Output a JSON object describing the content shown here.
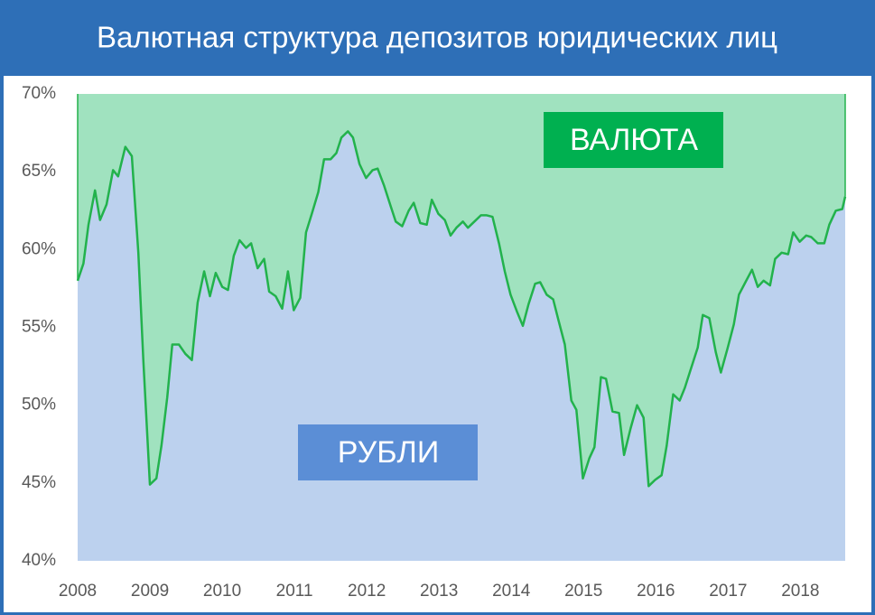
{
  "chart_data": {
    "type": "area-split",
    "title": "Валютная структура депозитов юридических лиц",
    "x": [
      2008.0,
      2008.08,
      2008.15,
      2008.24,
      2008.31,
      2008.4,
      2008.49,
      2008.56,
      2008.66,
      2008.75,
      2008.84,
      2008.91,
      2009.0,
      2009.09,
      2009.16,
      2009.24,
      2009.31,
      2009.4,
      2009.49,
      2009.58,
      2009.66,
      2009.75,
      2009.83,
      2009.91,
      2010.0,
      2010.08,
      2010.16,
      2010.24,
      2010.33,
      2010.4,
      2010.49,
      2010.58,
      2010.65,
      2010.74,
      2010.83,
      2010.91,
      2010.99,
      2011.08,
      2011.16,
      2011.24,
      2011.33,
      2011.41,
      2011.5,
      2011.58,
      2011.65,
      2011.74,
      2011.81,
      2011.9,
      2011.99,
      2012.08,
      2012.15,
      2012.24,
      2012.33,
      2012.4,
      2012.49,
      2012.58,
      2012.65,
      2012.74,
      2012.83,
      2012.9,
      2012.99,
      2013.08,
      2013.16,
      2013.24,
      2013.33,
      2013.4,
      2013.49,
      2013.58,
      2013.66,
      2013.74,
      2013.83,
      2013.91,
      2013.99,
      2014.08,
      2014.16,
      2014.24,
      2014.33,
      2014.4,
      2014.49,
      2014.58,
      2014.65,
      2014.74,
      2014.83,
      2014.9,
      2014.99,
      2015.08,
      2015.15,
      2015.24,
      2015.31,
      2015.4,
      2015.49,
      2015.56,
      2015.65,
      2015.74,
      2015.83,
      2015.9,
      2015.99,
      2016.08,
      2016.15,
      2016.24,
      2016.33,
      2016.4,
      2016.49,
      2016.58,
      2016.65,
      2016.74,
      2016.83,
      2016.9,
      2016.99,
      2017.08,
      2017.15,
      2017.24,
      2017.33,
      2017.41,
      2017.49,
      2017.58,
      2017.65,
      2017.74,
      2017.83,
      2017.9,
      2017.99,
      2018.08,
      2018.15,
      2018.24,
      2018.33,
      2018.4,
      2018.49,
      2018.58,
      2018.62
    ],
    "values": [
      58.0,
      59.1,
      61.6,
      63.8,
      61.9,
      62.9,
      65.1,
      64.7,
      66.6,
      66.0,
      59.8,
      52.8,
      44.9,
      45.3,
      47.4,
      50.5,
      53.9,
      53.9,
      53.3,
      52.9,
      56.6,
      58.6,
      57.0,
      58.5,
      57.6,
      57.4,
      59.6,
      60.6,
      60.1,
      60.4,
      58.8,
      59.4,
      57.3,
      57.0,
      56.2,
      58.6,
      56.1,
      56.9,
      61.1,
      62.3,
      63.7,
      65.8,
      65.8,
      66.2,
      67.2,
      67.6,
      67.2,
      65.5,
      64.6,
      65.1,
      65.2,
      64.1,
      62.8,
      61.8,
      61.5,
      62.5,
      63.0,
      61.7,
      61.6,
      63.2,
      62.3,
      61.9,
      60.9,
      61.4,
      61.8,
      61.4,
      61.8,
      62.2,
      62.2,
      62.1,
      60.4,
      58.6,
      57.1,
      56.0,
      55.1,
      56.5,
      57.8,
      57.9,
      57.1,
      56.8,
      55.5,
      53.9,
      50.3,
      49.7,
      45.3,
      46.6,
      47.3,
      51.8,
      51.7,
      49.6,
      49.5,
      46.8,
      48.5,
      50.0,
      49.2,
      44.8,
      45.2,
      45.5,
      47.4,
      50.7,
      50.3,
      51.1,
      52.4,
      53.7,
      55.8,
      55.6,
      53.4,
      52.1,
      53.6,
      55.2,
      57.1,
      57.9,
      58.7,
      57.6,
      58.0,
      57.7,
      59.4,
      59.8,
      59.7,
      61.1,
      60.5,
      60.9,
      60.8,
      60.4,
      60.4,
      61.6,
      62.5,
      62.6,
      63.4
    ],
    "xlim": [
      2008,
      2018.62
    ],
    "xticks": [
      2008,
      2009,
      2010,
      2011,
      2012,
      2013,
      2014,
      2015,
      2016,
      2017,
      2018
    ],
    "ylim": [
      40,
      70
    ],
    "yticks": [
      {
        "value": 40,
        "label": "40%"
      },
      {
        "value": 45,
        "label": "45%"
      },
      {
        "value": 50,
        "label": "50%"
      },
      {
        "value": 55,
        "label": "55%"
      },
      {
        "value": 60,
        "label": "60%"
      },
      {
        "value": 65,
        "label": "65%"
      },
      {
        "value": 70,
        "label": "70%"
      }
    ],
    "line_color": "#22b24c",
    "upper_color": "#a0e2bf",
    "lower_color": "#bcd1ee",
    "annotations": [
      {
        "text": "ВАЛЮТА",
        "color": "#00b050"
      },
      {
        "text": "РУБЛИ",
        "color": "#5b8ed6"
      }
    ]
  }
}
